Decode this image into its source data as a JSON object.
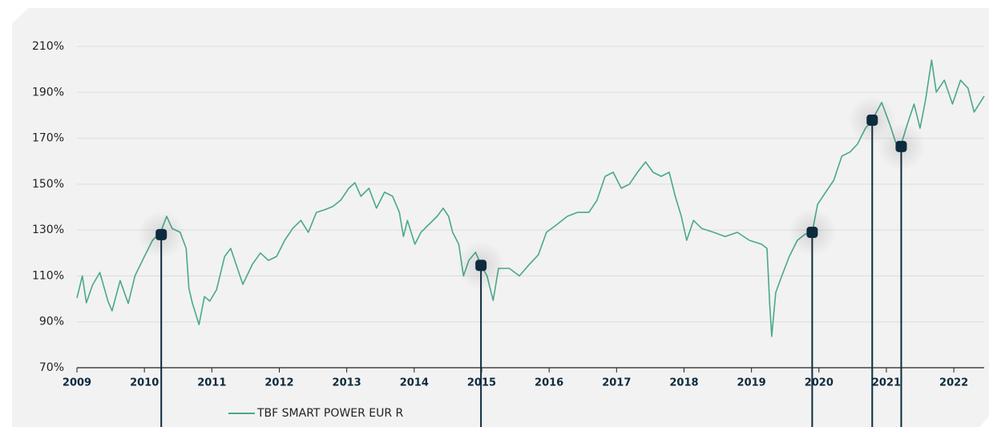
{
  "chart_data": {
    "type": "line",
    "x": [
      2009.0,
      2009.08,
      2009.14,
      2009.23,
      2009.34,
      2009.46,
      2009.52,
      2009.64,
      2009.76,
      2009.86,
      2010.0,
      2010.12,
      2010.24,
      2010.33,
      2010.41,
      2010.53,
      2010.62,
      2010.66,
      2010.71,
      2010.81,
      2010.89,
      2010.97,
      2011.07,
      2011.19,
      2011.28,
      2011.36,
      2011.46,
      2011.6,
      2011.72,
      2011.84,
      2011.96,
      2012.08,
      2012.2,
      2012.32,
      2012.43,
      2012.55,
      2012.67,
      2012.79,
      2012.91,
      2013.03,
      2013.12,
      2013.21,
      2013.33,
      2013.44,
      2013.56,
      2013.68,
      2013.78,
      2013.84,
      2013.9,
      2014.01,
      2014.1,
      2014.22,
      2014.34,
      2014.43,
      2014.51,
      2014.57,
      2014.66,
      2014.73,
      2014.81,
      2014.91,
      2014.99,
      2015.08,
      2015.17,
      2015.25,
      2015.41,
      2015.56,
      2015.7,
      2015.84,
      2015.96,
      2016.12,
      2016.27,
      2016.42,
      2016.59,
      2016.71,
      2016.83,
      2016.95,
      2017.07,
      2017.19,
      2017.31,
      2017.43,
      2017.54,
      2017.66,
      2017.78,
      2017.87,
      2017.96,
      2018.04,
      2018.14,
      2018.26,
      2018.44,
      2018.61,
      2018.79,
      2018.97,
      2019.15,
      2019.23,
      2019.27,
      2019.3,
      2019.36,
      2019.45,
      2019.56,
      2019.68,
      2019.8,
      2019.9,
      2019.98,
      2020.1,
      2020.22,
      2020.34,
      2020.46,
      2020.57,
      2020.69,
      2020.79,
      2020.93,
      2021.05,
      2021.14,
      2021.22,
      2021.31,
      2021.41,
      2021.5,
      2021.58,
      2021.67,
      2021.74,
      2021.86,
      2021.98,
      2022.1,
      2022.21,
      2022.3,
      2022.45
    ],
    "series": [
      {
        "name": "TBF SMART POWER EUR R",
        "color": "#4aa88c",
        "values": [
          100.4,
          110,
          98.3,
          106,
          111.5,
          99,
          94.8,
          108,
          98,
          110,
          118.5,
          125.5,
          129,
          136,
          130.7,
          129,
          122,
          104.6,
          98.3,
          88.8,
          101,
          99,
          104,
          118.5,
          122,
          115,
          106.3,
          115,
          120,
          116.8,
          118.5,
          125.5,
          130.7,
          134.2,
          129,
          137.7,
          138.8,
          140.2,
          143,
          148.2,
          150.6,
          144.7,
          148.2,
          139.5,
          146.5,
          144.7,
          137.7,
          127.2,
          134.2,
          123.8,
          129,
          132.5,
          136,
          139.5,
          136,
          129,
          123.8,
          110,
          116.8,
          120.3,
          114.8,
          110,
          99.3,
          113.3,
          113.3,
          110,
          114.8,
          119.2,
          129,
          132.5,
          136,
          137.7,
          137.7,
          143,
          153.4,
          155.2,
          148.2,
          150,
          155.2,
          159.7,
          155.2,
          153.4,
          155.2,
          144.7,
          136,
          125.5,
          134.2,
          130.7,
          129,
          127.2,
          129,
          125.5,
          123.8,
          122,
          97.6,
          83.6,
          102.8,
          110,
          118.5,
          125.5,
          128.3,
          129,
          141.2,
          146.5,
          151.7,
          162.2,
          164,
          167.4,
          174.4,
          177.9,
          185.6,
          176.1,
          168.1,
          167.4,
          176.1,
          184.9,
          174.4,
          186.6,
          204.1,
          190.1,
          195.3,
          184.9,
          195.3,
          191.8,
          181.4,
          188.4
        ]
      }
    ],
    "markers": {
      "color": "#0d2b3e",
      "x": [
        2010.25,
        2014.99,
        2019.9,
        2020.79,
        2021.22
      ],
      "values": [
        128,
        114.6,
        129,
        177.9,
        166.4
      ]
    },
    "xlim": [
      2009,
      2022.45
    ],
    "xticks": [
      2009,
      2010,
      2011,
      2012,
      2013,
      2014,
      2015,
      2016,
      2017,
      2018,
      2019,
      2020,
      2021,
      2022
    ],
    "ylim": [
      70,
      210
    ],
    "yticks": [
      {
        "value": 70,
        "label": "70%"
      },
      {
        "value": 90,
        "label": "90%"
      },
      {
        "value": 110,
        "label": "110%"
      },
      {
        "value": 130,
        "label": "130%"
      },
      {
        "value": 150,
        "label": "150%"
      },
      {
        "value": 170,
        "label": "170%"
      },
      {
        "value": 190,
        "label": "190%"
      },
      {
        "value": 210,
        "label": "210%"
      }
    ],
    "grid": true
  }
}
